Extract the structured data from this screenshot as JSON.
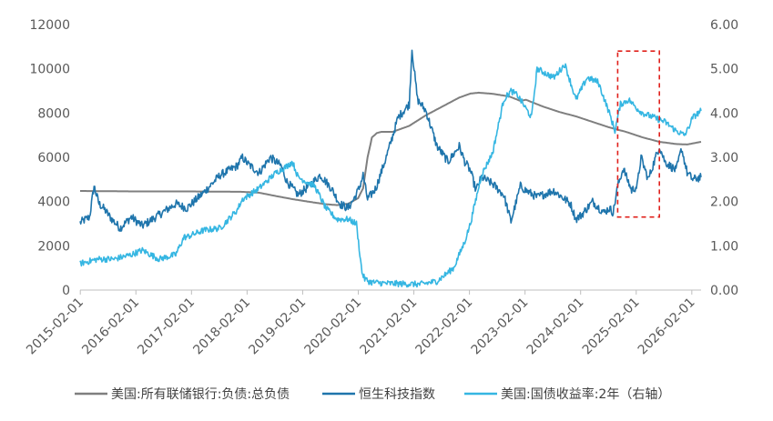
{
  "chart_data": {
    "type": "line",
    "title": "",
    "x_ticks": [
      "2015-02-01",
      "2016-02-01",
      "2017-02-01",
      "2018-02-01",
      "2019-02-01",
      "2020-02-01",
      "2021-02-01",
      "2022-02-01",
      "2023-02-01",
      "2024-02-01",
      "2025-02-01",
      "2026-02-01"
    ],
    "x_range": [
      2015.08,
      2026.25
    ],
    "y_left": {
      "min": 0,
      "max": 12000,
      "ticks": [
        "0",
        "2000",
        "4000",
        "6000",
        "8000",
        "10000",
        "12000"
      ]
    },
    "y_right": {
      "min": 0,
      "max": 6,
      "ticks": [
        "0.00",
        "1.00",
        "2.00",
        "3.00",
        "4.00",
        "5.00",
        "6.00"
      ]
    },
    "grid": false,
    "legend_position": "bottom",
    "series": [
      {
        "name": "美国:所有联储银行:负债:总负债",
        "axis": "left",
        "color": "#7f7f7f",
        "x": [
          2015.08,
          2015.5,
          2016.0,
          2016.5,
          2017.0,
          2017.5,
          2018.0,
          2018.3,
          2018.6,
          2018.9,
          2019.2,
          2019.5,
          2019.7,
          2019.9,
          2020.08,
          2020.17,
          2020.25,
          2020.33,
          2020.42,
          2020.5,
          2020.7,
          2021.0,
          2021.3,
          2021.6,
          2021.9,
          2022.1,
          2022.25,
          2022.5,
          2022.8,
          2023.0,
          2023.1,
          2023.2,
          2023.4,
          2023.7,
          2024.0,
          2024.3,
          2024.6,
          2024.9,
          2025.2,
          2025.5,
          2025.8,
          2026.0,
          2026.25
        ],
        "values": [
          4480,
          4470,
          4460,
          4460,
          4460,
          4450,
          4440,
          4400,
          4250,
          4110,
          3990,
          3880,
          3840,
          3900,
          4150,
          4600,
          6000,
          6900,
          7100,
          7150,
          7150,
          7420,
          7900,
          8300,
          8700,
          8880,
          8920,
          8870,
          8750,
          8550,
          8600,
          8500,
          8300,
          8050,
          7850,
          7600,
          7350,
          7150,
          6900,
          6700,
          6600,
          6580,
          6700
        ]
      },
      {
        "name": "恒生科技指数",
        "axis": "left",
        "color": "#1f75ac",
        "x": [
          2015.08,
          2015.25,
          2015.33,
          2015.42,
          2015.5,
          2015.65,
          2015.8,
          2016.0,
          2016.2,
          2016.5,
          2016.8,
          2017.0,
          2017.3,
          2017.6,
          2017.9,
          2018.0,
          2018.1,
          2018.3,
          2018.5,
          2018.7,
          2018.8,
          2019.0,
          2019.2,
          2019.4,
          2019.6,
          2019.75,
          2019.9,
          2020.0,
          2020.1,
          2020.17,
          2020.25,
          2020.4,
          2020.6,
          2020.8,
          2021.0,
          2021.05,
          2021.1,
          2021.15,
          2021.3,
          2021.5,
          2021.7,
          2021.9,
          2022.0,
          2022.1,
          2022.2,
          2022.3,
          2022.5,
          2022.7,
          2022.83,
          2023.0,
          2023.1,
          2023.3,
          2023.6,
          2023.9,
          2024.0,
          2024.1,
          2024.3,
          2024.5,
          2024.6,
          2024.67,
          2024.75,
          2024.85,
          2025.0,
          2025.1,
          2025.17,
          2025.3,
          2025.5,
          2025.6,
          2025.8,
          2025.9,
          2026.0,
          2026.1,
          2026.25
        ],
        "values": [
          3050,
          3300,
          4700,
          3900,
          3700,
          3200,
          2800,
          3300,
          2900,
          3400,
          3900,
          3700,
          4400,
          5200,
          5600,
          6000,
          5700,
          5300,
          6000,
          5600,
          4900,
          4300,
          4700,
          5200,
          4600,
          3900,
          3700,
          4100,
          4600,
          5200,
          4100,
          4600,
          6100,
          7800,
          8400,
          10900,
          9700,
          8600,
          8100,
          6500,
          5800,
          6500,
          5800,
          5400,
          4500,
          5100,
          4800,
          4300,
          3100,
          4700,
          4500,
          4200,
          4500,
          3900,
          3200,
          3400,
          4000,
          3500,
          3700,
          3500,
          4700,
          5500,
          4500,
          4700,
          6000,
          5000,
          6500,
          5800,
          5400,
          6400,
          5300,
          5000,
          5100
        ]
      },
      {
        "name": "美国:国债收益率:2年（右轴）",
        "axis": "right",
        "color": "#35b6e2",
        "x": [
          2015.08,
          2015.4,
          2015.7,
          2016.0,
          2016.2,
          2016.5,
          2016.8,
          2016.95,
          2017.0,
          2017.3,
          2017.6,
          2017.9,
          2018.0,
          2018.3,
          2018.6,
          2018.8,
          2018.9,
          2019.0,
          2019.3,
          2019.5,
          2019.7,
          2019.9,
          2020.05,
          2020.15,
          2020.2,
          2020.3,
          2020.6,
          2020.9,
          2021.2,
          2021.5,
          2021.8,
          2022.0,
          2022.1,
          2022.3,
          2022.5,
          2022.7,
          2022.83,
          2022.95,
          2023.1,
          2023.2,
          2023.3,
          2023.6,
          2023.8,
          2024.0,
          2024.2,
          2024.4,
          2024.6,
          2024.7,
          2024.8,
          2024.95,
          2025.1,
          2025.2,
          2025.4,
          2025.6,
          2025.8,
          2025.95,
          2026.0,
          2026.1,
          2026.25
        ],
        "values": [
          0.6,
          0.7,
          0.7,
          0.8,
          0.9,
          0.7,
          0.8,
          1.2,
          1.2,
          1.35,
          1.4,
          1.8,
          2.05,
          2.3,
          2.65,
          2.8,
          2.9,
          2.55,
          2.35,
          1.85,
          1.6,
          1.6,
          1.5,
          0.4,
          0.25,
          0.18,
          0.15,
          0.14,
          0.13,
          0.2,
          0.5,
          1.1,
          1.5,
          2.6,
          3.1,
          4.3,
          4.5,
          4.4,
          4.1,
          3.9,
          5.0,
          4.8,
          5.1,
          4.3,
          4.8,
          4.7,
          4.0,
          3.6,
          4.2,
          4.3,
          4.1,
          4.0,
          3.9,
          3.8,
          3.6,
          3.5,
          3.6,
          3.9,
          4.05
        ]
      }
    ],
    "annotation": {
      "type": "dashed-rect",
      "color": "#e0201b",
      "x_range": [
        2024.75,
        2025.5
      ],
      "y_range_left": [
        3300,
        10800
      ]
    }
  }
}
